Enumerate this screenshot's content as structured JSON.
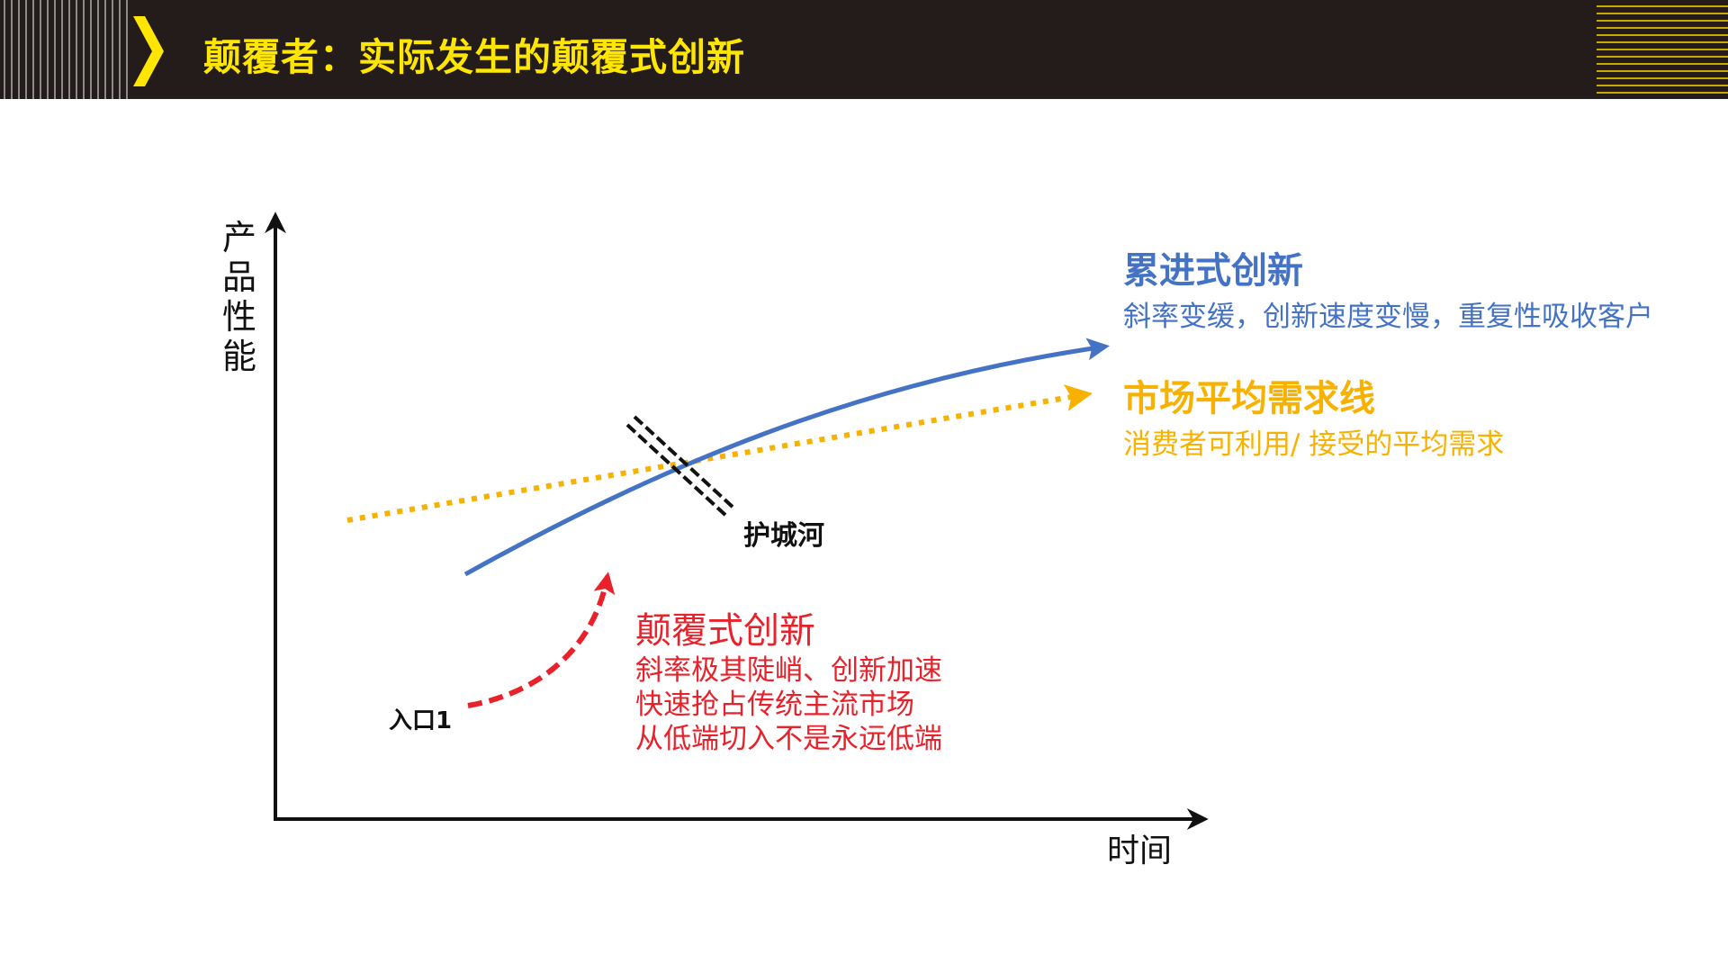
{
  "header": {
    "title": "颠覆者：实际发生的颠覆式创新"
  },
  "axes": {
    "y_label_chars": [
      "产",
      "品",
      "性",
      "能"
    ],
    "x_label": "时间"
  },
  "curves": {
    "sustaining": {
      "title": "累进式创新",
      "description": "斜率变缓，创新速度变慢，重复性吸收客户",
      "color": "#4472c4"
    },
    "market_demand": {
      "title": "市场平均需求线",
      "description": "消费者可利用/  接受的平均需求",
      "color": "#f7b100"
    },
    "disruptive": {
      "title": "颠覆式创新",
      "description_lines": [
        "斜率极其陡峭、创新加速",
        "快速抢占传统主流市场",
        "从低端切入不是永远低端"
      ],
      "color": "#e8212a"
    }
  },
  "annotations": {
    "moat": "护城河",
    "entry": "入口1"
  },
  "colors": {
    "header_bg": "#231c1a",
    "title_yellow": "#ffe600"
  }
}
